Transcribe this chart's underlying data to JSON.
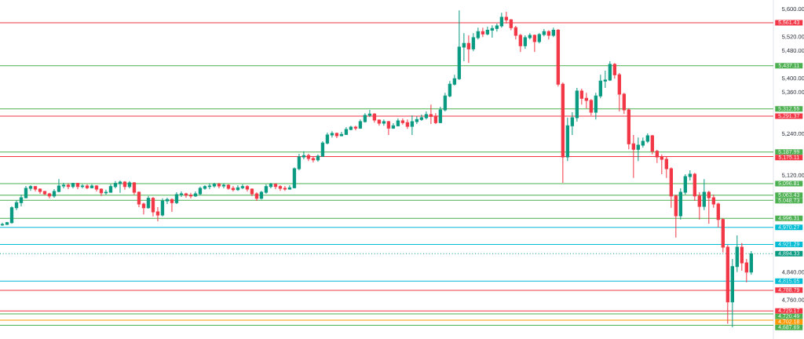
{
  "chart_data": {
    "type": "candlestick",
    "categories": [
      null,
      null,
      null,
      null,
      null,
      null,
      null,
      null,
      null,
      null,
      null,
      null,
      null,
      null,
      null,
      null,
      null,
      null,
      null,
      null,
      null,
      null,
      null,
      null,
      null,
      null,
      null,
      null,
      null,
      null,
      null,
      null,
      null,
      null,
      null,
      null,
      null,
      null,
      null,
      null,
      null,
      null,
      null,
      null,
      null,
      null,
      null,
      null,
      null,
      null,
      null,
      null,
      null,
      null,
      null,
      null,
      null,
      null,
      null,
      null,
      null,
      null,
      null,
      null,
      null,
      null,
      null,
      null,
      null,
      null,
      null,
      null,
      null,
      null,
      null,
      null,
      null,
      null,
      null,
      null,
      null,
      null,
      null,
      null,
      null,
      null,
      null,
      null,
      null,
      null,
      null,
      null,
      null,
      null,
      null,
      null,
      null,
      null,
      null,
      null,
      null,
      null,
      null,
      null,
      null,
      null,
      null,
      null,
      null,
      null,
      null,
      null,
      null,
      null,
      null,
      null,
      null,
      null,
      null,
      null,
      null,
      null,
      null,
      null,
      null,
      null,
      null,
      null,
      null,
      null,
      null,
      null,
      null,
      null,
      null,
      null,
      null,
      null,
      null,
      null,
      null,
      null,
      null,
      null,
      null,
      null,
      null,
      null,
      null,
      null,
      null,
      null,
      null,
      null,
      null,
      null,
      null,
      null,
      null,
      null
    ],
    "ohlc": [
      [
        4977,
        4984,
        4975,
        4979
      ],
      [
        4979,
        4986,
        4977,
        4984
      ],
      [
        4984,
        5031,
        4981,
        5027
      ],
      [
        5027,
        5049,
        5020,
        5042
      ],
      [
        5042,
        5065,
        5031,
        5056
      ],
      [
        5056,
        5090,
        5054,
        5083
      ],
      [
        5083,
        5092,
        5076,
        5088
      ],
      [
        5088,
        5090,
        5074,
        5081
      ],
      [
        5081,
        5083,
        5067,
        5074
      ],
      [
        5074,
        5076,
        5063,
        5067
      ],
      [
        5067,
        5070,
        5054,
        5061
      ],
      [
        5061,
        5081,
        5056,
        5074
      ],
      [
        5074,
        5110,
        5072,
        5090
      ],
      [
        5090,
        5099,
        5083,
        5092
      ],
      [
        5092,
        5097,
        5081,
        5088
      ],
      [
        5088,
        5099,
        5083,
        5097
      ],
      [
        5097,
        5099,
        5081,
        5088
      ],
      [
        5088,
        5095,
        5083,
        5090
      ],
      [
        5090,
        5095,
        5081,
        5085
      ],
      [
        5085,
        5095,
        5083,
        5090
      ],
      [
        5090,
        5092,
        5074,
        5081
      ],
      [
        5081,
        5083,
        5061,
        5070
      ],
      [
        5070,
        5079,
        5065,
        5072
      ],
      [
        5072,
        5095,
        5070,
        5088
      ],
      [
        5088,
        5104,
        5083,
        5097
      ],
      [
        5097,
        5106,
        5070,
        5101
      ],
      [
        5101,
        5104,
        5079,
        5088
      ],
      [
        5088,
        5104,
        5083,
        5099
      ],
      [
        5099,
        5101,
        5065,
        5072
      ],
      [
        5072,
        5074,
        5029,
        5038
      ],
      [
        5038,
        5042,
        5008,
        5027
      ],
      [
        5027,
        5061,
        5024,
        5054
      ],
      [
        5054,
        5058,
        5002,
        5015
      ],
      [
        5015,
        5029,
        4988,
        5006
      ],
      [
        5006,
        5054,
        5002,
        5047
      ],
      [
        5047,
        5056,
        5038,
        5051
      ],
      [
        5051,
        5054,
        5015,
        5042
      ],
      [
        5042,
        5072,
        5038,
        5065
      ],
      [
        5065,
        5074,
        5058,
        5067
      ],
      [
        5067,
        5070,
        5056,
        5063
      ],
      [
        5063,
        5070,
        5054,
        5061
      ],
      [
        5061,
        5074,
        5058,
        5067
      ],
      [
        5067,
        5088,
        5063,
        5083
      ],
      [
        5083,
        5092,
        5079,
        5088
      ],
      [
        5088,
        5097,
        5081,
        5090
      ],
      [
        5090,
        5099,
        5085,
        5095
      ],
      [
        5095,
        5099,
        5083,
        5090
      ],
      [
        5090,
        5097,
        5083,
        5092
      ],
      [
        5092,
        5095,
        5079,
        5083
      ],
      [
        5083,
        5090,
        5074,
        5079
      ],
      [
        5079,
        5092,
        5076,
        5085
      ],
      [
        5085,
        5095,
        5081,
        5088
      ],
      [
        5088,
        5092,
        5074,
        5081
      ],
      [
        5081,
        5083,
        5061,
        5067
      ],
      [
        5067,
        5072,
        5047,
        5054
      ],
      [
        5054,
        5076,
        5051,
        5072
      ],
      [
        5072,
        5095,
        5067,
        5088
      ],
      [
        5088,
        5099,
        5083,
        5095
      ],
      [
        5095,
        5097,
        5081,
        5088
      ],
      [
        5088,
        5092,
        5076,
        5083
      ],
      [
        5083,
        5090,
        5076,
        5081
      ],
      [
        5081,
        5092,
        5079,
        5085
      ],
      [
        5085,
        5144,
        5083,
        5140
      ],
      [
        5140,
        5183,
        5135,
        5174
      ],
      [
        5174,
        5190,
        5167,
        5178
      ],
      [
        5178,
        5183,
        5162,
        5169
      ],
      [
        5169,
        5176,
        5158,
        5165
      ],
      [
        5165,
        5181,
        5160,
        5176
      ],
      [
        5176,
        5219,
        5174,
        5214
      ],
      [
        5214,
        5244,
        5210,
        5237
      ],
      [
        5237,
        5248,
        5230,
        5242
      ],
      [
        5242,
        5244,
        5228,
        5235
      ],
      [
        5235,
        5246,
        5233,
        5239
      ],
      [
        5239,
        5260,
        5237,
        5253
      ],
      [
        5253,
        5264,
        5251,
        5260
      ],
      [
        5260,
        5264,
        5251,
        5257
      ],
      [
        5257,
        5282,
        5255,
        5276
      ],
      [
        5276,
        5300,
        5273,
        5294
      ],
      [
        5294,
        5310,
        5289,
        5298
      ],
      [
        5298,
        5300,
        5273,
        5280
      ],
      [
        5280,
        5282,
        5264,
        5271
      ],
      [
        5271,
        5282,
        5264,
        5276
      ],
      [
        5276,
        5278,
        5237,
        5257
      ],
      [
        5257,
        5271,
        5255,
        5264
      ],
      [
        5264,
        5285,
        5262,
        5278
      ],
      [
        5278,
        5285,
        5267,
        5273
      ],
      [
        5273,
        5282,
        5255,
        5262
      ],
      [
        5262,
        5294,
        5237,
        5276
      ],
      [
        5276,
        5291,
        5269,
        5282
      ],
      [
        5282,
        5296,
        5278,
        5287
      ],
      [
        5287,
        5305,
        5282,
        5296
      ],
      [
        5296,
        5325,
        5269,
        5291
      ],
      [
        5291,
        5300,
        5269,
        5273
      ],
      [
        5273,
        5319,
        5271,
        5310
      ],
      [
        5310,
        5359,
        5305,
        5350
      ],
      [
        5350,
        5393,
        5346,
        5384
      ],
      [
        5384,
        5411,
        5380,
        5400
      ],
      [
        5400,
        5597,
        5396,
        5491
      ],
      [
        5491,
        5531,
        5450,
        5502
      ],
      [
        5502,
        5525,
        5445,
        5486
      ],
      [
        5486,
        5531,
        5479,
        5518
      ],
      [
        5518,
        5547,
        5513,
        5536
      ],
      [
        5536,
        5547,
        5520,
        5529
      ],
      [
        5529,
        5550,
        5525,
        5540
      ],
      [
        5540,
        5554,
        5518,
        5545
      ],
      [
        5545,
        5559,
        5536,
        5552
      ],
      [
        5552,
        5590,
        5547,
        5577
      ],
      [
        5577,
        5593,
        5559,
        5570
      ],
      [
        5570,
        5572,
        5540,
        5547
      ],
      [
        5547,
        5552,
        5513,
        5525
      ],
      [
        5525,
        5529,
        5477,
        5495
      ],
      [
        5495,
        5525,
        5486,
        5518
      ],
      [
        5518,
        5531,
        5513,
        5525
      ],
      [
        5525,
        5527,
        5477,
        5507
      ],
      [
        5507,
        5531,
        5502,
        5527
      ],
      [
        5527,
        5543,
        5522,
        5536
      ],
      [
        5536,
        5540,
        5513,
        5525
      ],
      [
        5525,
        5547,
        5520,
        5540
      ],
      [
        5540,
        5543,
        5377,
        5384
      ],
      [
        5384,
        5389,
        5099,
        5174
      ],
      [
        5174,
        5287,
        5162,
        5264
      ],
      [
        5264,
        5303,
        5237,
        5287
      ],
      [
        5287,
        5373,
        5276,
        5364
      ],
      [
        5364,
        5371,
        5325,
        5343
      ],
      [
        5343,
        5359,
        5314,
        5337
      ],
      [
        5337,
        5341,
        5294,
        5303
      ],
      [
        5303,
        5359,
        5282,
        5350
      ],
      [
        5350,
        5411,
        5343,
        5393
      ],
      [
        5393,
        5423,
        5373,
        5396
      ],
      [
        5396,
        5450,
        5393,
        5441
      ],
      [
        5441,
        5445,
        5400,
        5411
      ],
      [
        5411,
        5416,
        5305,
        5355
      ],
      [
        5355,
        5359,
        5298,
        5310
      ],
      [
        5310,
        5314,
        5196,
        5212
      ],
      [
        5212,
        5237,
        5113,
        5196
      ],
      [
        5196,
        5230,
        5162,
        5208
      ],
      [
        5208,
        5230,
        5201,
        5219
      ],
      [
        5219,
        5242,
        5214,
        5235
      ],
      [
        5235,
        5237,
        5181,
        5190
      ],
      [
        5190,
        5194,
        5156,
        5174
      ],
      [
        5174,
        5181,
        5124,
        5167
      ],
      [
        5167,
        5174,
        5113,
        5140
      ],
      [
        5140,
        5144,
        5027,
        5061
      ],
      [
        5061,
        5065,
        4941,
        5004
      ],
      [
        5004,
        5083,
        4993,
        5072
      ],
      [
        5072,
        5124,
        5065,
        5117
      ],
      [
        5117,
        5135,
        5106,
        5124
      ],
      [
        5124,
        5128,
        5047,
        5061
      ],
      [
        5061,
        5072,
        4993,
        5031
      ],
      [
        5031,
        5110,
        5020,
        5072
      ],
      [
        5072,
        5076,
        4981,
        5056
      ],
      [
        5056,
        5065,
        5027,
        5038
      ],
      [
        5038,
        5042,
        4970,
        4993
      ],
      [
        4993,
        4997,
        4898,
        4913
      ],
      [
        4913,
        4920,
        4692,
        4755
      ],
      [
        4755,
        4879,
        4682,
        4857
      ],
      [
        4857,
        4947,
        4841,
        4913
      ],
      [
        4913,
        4925,
        4845,
        4868
      ],
      [
        4868,
        4879,
        4812,
        4841
      ],
      [
        4841,
        4902,
        4834,
        4894
      ]
    ],
    "ylim": [
      4648,
      5627
    ],
    "yticks": [
      {
        "value": 5600,
        "label": "5,600.00"
      },
      {
        "value": 5520,
        "label": "5,520.00"
      },
      {
        "value": 5480,
        "label": "5,480.00"
      },
      {
        "value": 5400,
        "label": "5,400.00"
      },
      {
        "value": 5360,
        "label": "5,360.00"
      },
      {
        "value": 5240,
        "label": "5,240.00"
      },
      {
        "value": 5120,
        "label": "5,120.00"
      },
      {
        "value": 4840,
        "label": "4,840.00"
      },
      {
        "value": 4760,
        "label": "4,760.00"
      }
    ],
    "tick_labels": "y",
    "ref_lines": [
      {
        "axis": "y",
        "value": 5561.43,
        "label": "5,561.43",
        "color": "#f23645"
      },
      {
        "axis": "y",
        "value": 5437.11,
        "label": "5,437.11",
        "color": "#4caf50"
      },
      {
        "axis": "y",
        "value": 5312.55,
        "label": "5,312.55",
        "color": "#4caf50"
      },
      {
        "axis": "y",
        "value": 5291.37,
        "label": "5,291.37",
        "color": "#f23645"
      },
      {
        "axis": "y",
        "value": 5187.99,
        "label": "5,187.99",
        "color": "#4caf50"
      },
      {
        "axis": "y",
        "value": 5175.11,
        "label": "5,175.11",
        "color": "#f23645"
      },
      {
        "axis": "y",
        "value": 5096.81,
        "label": "5,096.81",
        "color": "#4caf50"
      },
      {
        "axis": "y",
        "value": 5063.43,
        "label": "5,063.43",
        "color": "#4caf50"
      },
      {
        "axis": "y",
        "value": 5048.73,
        "label": "5,048.73",
        "color": "#4caf50"
      },
      {
        "axis": "y",
        "value": 4996.31,
        "label": "4,996.31",
        "color": "#4caf50"
      },
      {
        "axis": "y",
        "value": 4970.27,
        "label": "4,970.27",
        "color": "#00bcd4"
      },
      {
        "axis": "y",
        "value": 4921.29,
        "label": "4,921.29",
        "color": "#00bcd4"
      },
      {
        "axis": "y",
        "value": 4894.33,
        "label": "4,894.33",
        "color": "#089981",
        "line_style": "dotted"
      },
      {
        "axis": "y",
        "value": 4815.05,
        "label": "4,815.05",
        "color": "#00bcd4"
      },
      {
        "axis": "y",
        "value": 4788.79,
        "label": "4,788.79",
        "color": "#f23645"
      },
      {
        "axis": "y",
        "value": 4729.17,
        "label": "4,729.17",
        "color": "#f23645"
      },
      {
        "axis": "y",
        "value": 4720.49,
        "label": "4,720.49",
        "color": "#4caf50"
      },
      {
        "axis": "y",
        "value": 4702.18,
        "label": "4,702.18",
        "color": "#ff9800"
      },
      {
        "axis": "y",
        "value": 4687.69,
        "label": "4,687.69",
        "color": "#4caf50"
      }
    ]
  }
}
